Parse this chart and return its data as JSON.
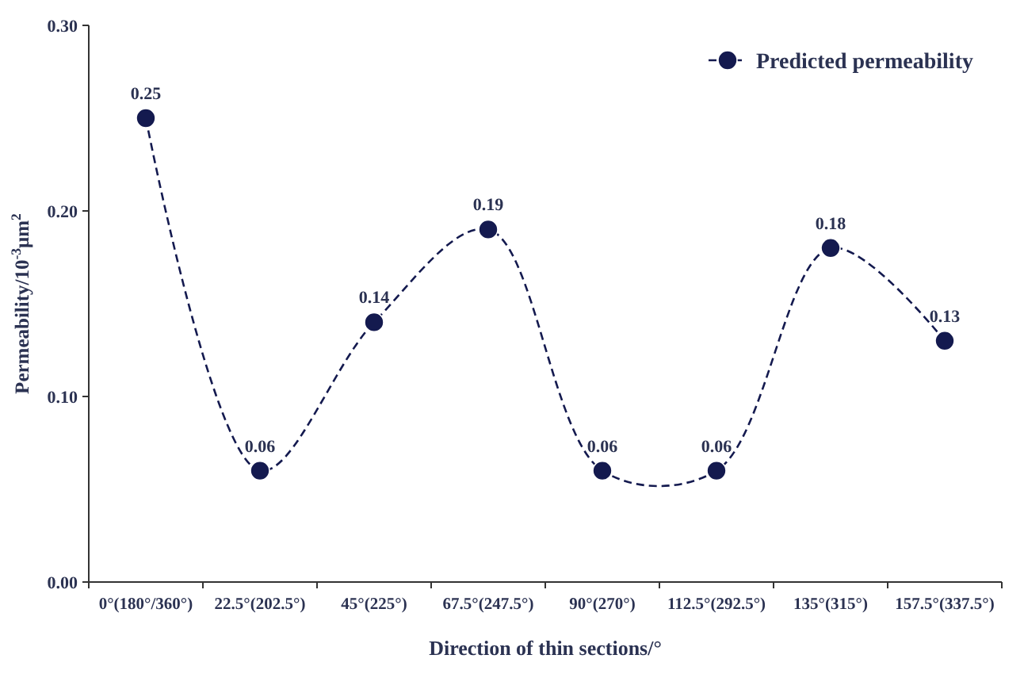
{
  "chart_data": {
    "type": "line",
    "xlabel": "Direction of thin sections/°",
    "ylabel": "Permeability/10$^{-3}$μm$^{2}$",
    "categories": [
      "0°(180°/360°)",
      "22.5°(202.5°)",
      "45°(225°)",
      "67.5°(247.5°)",
      "90°(270°)",
      "112.5°(292.5°)",
      "135°(315°)",
      "157.5°(337.5°)"
    ],
    "series": [
      {
        "name": "Predicted permeability",
        "color": "#141a4f",
        "values": [
          0.25,
          0.06,
          0.14,
          0.19,
          0.06,
          0.06,
          0.18,
          0.13
        ]
      }
    ],
    "ylim": [
      0,
      0.3
    ],
    "yticks": [
      {
        "value": 0,
        "label": "0.00"
      },
      {
        "value": 0.1,
        "label": "0.10"
      },
      {
        "value": 0.2,
        "label": "0.20"
      },
      {
        "value": 0.3,
        "label": "0.30"
      }
    ],
    "marker": "circle",
    "line_style": "dashed",
    "data_labels": true,
    "legend": "top right",
    "grid": false
  }
}
